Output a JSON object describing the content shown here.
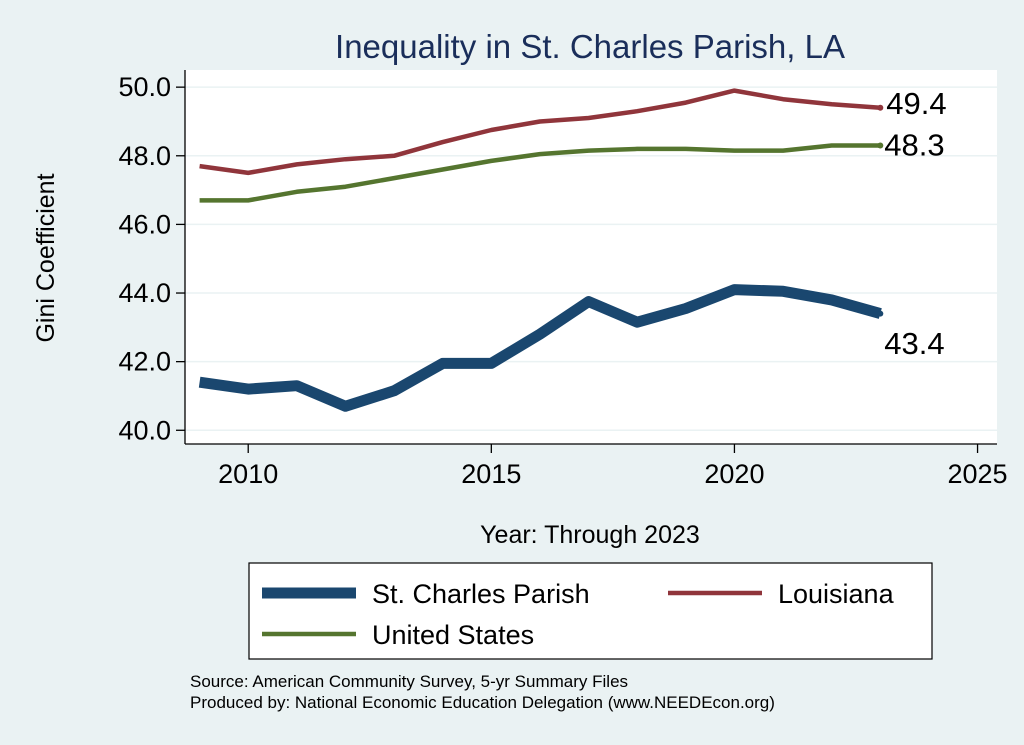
{
  "chart_data": {
    "type": "line",
    "title": "Inequality in St. Charles Parish, LA",
    "xlabel": "Year: Through 2023",
    "ylabel": "Gini Coefficient",
    "xlim": [
      2008.7,
      2025.4
    ],
    "ylim": [
      39.6,
      50.5
    ],
    "x_ticks": [
      2010,
      2015,
      2020,
      2025
    ],
    "y_ticks": [
      40,
      42,
      44,
      46,
      48,
      50
    ],
    "y_tick_labels": [
      "40.0",
      "42.0",
      "44.0",
      "46.0",
      "48.0",
      "50.0"
    ],
    "grid": true,
    "legend_position": "bottom",
    "x": [
      2009,
      2010,
      2011,
      2012,
      2013,
      2014,
      2015,
      2016,
      2017,
      2018,
      2019,
      2020,
      2021,
      2022,
      2023
    ],
    "series": [
      {
        "name": "St. Charles Parish",
        "color": "#1a476f",
        "style": "thick",
        "values": [
          41.4,
          41.2,
          41.3,
          40.7,
          41.15,
          41.95,
          41.95,
          42.8,
          43.75,
          43.15,
          43.55,
          44.1,
          44.05,
          43.8,
          43.4
        ],
        "end_label": "43.4"
      },
      {
        "name": "Louisiana",
        "color": "#90353b",
        "style": "normal",
        "values": [
          47.7,
          47.5,
          47.75,
          47.9,
          48.0,
          48.4,
          48.75,
          49.0,
          49.1,
          49.3,
          49.55,
          49.9,
          49.65,
          49.5,
          49.4
        ],
        "end_label": "49.4"
      },
      {
        "name": "United States",
        "color": "#55752f",
        "style": "normal",
        "values": [
          46.7,
          46.7,
          46.95,
          47.1,
          47.35,
          47.6,
          47.85,
          48.05,
          48.15,
          48.2,
          48.2,
          48.15,
          48.15,
          48.3,
          48.3
        ],
        "end_label": "48.3"
      }
    ]
  },
  "footer": {
    "source": "Source: American Community Survey, 5-yr Summary Files",
    "produced_by": "Produced by: National Economic Education Delegation (www.NEEDEcon.org)"
  }
}
